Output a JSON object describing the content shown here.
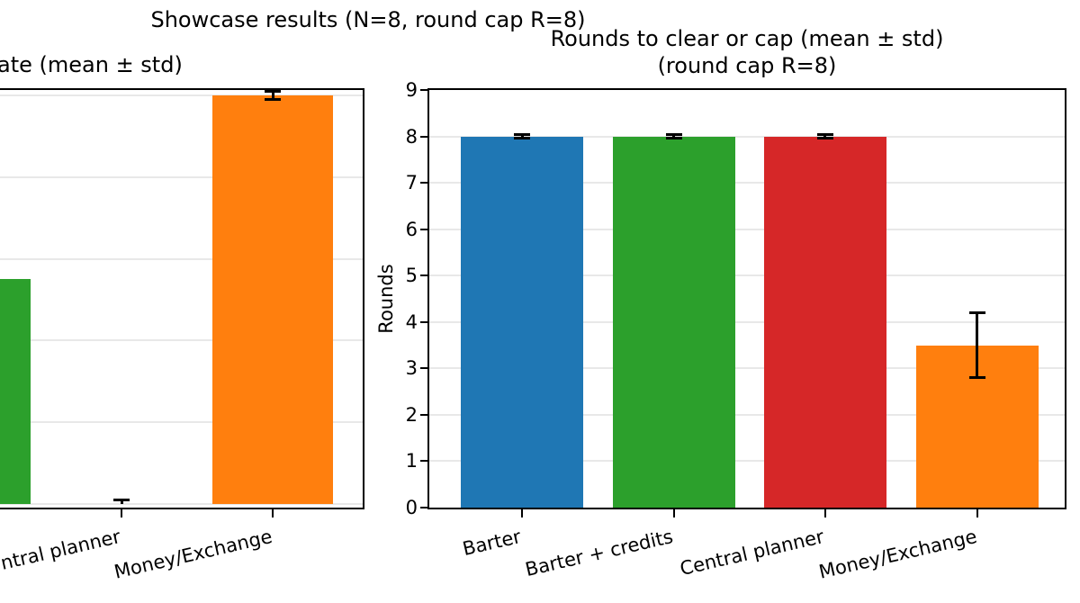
{
  "suptitle": "Showcase results (N=8, round cap R=8)",
  "colors": {
    "background": "#ffffff",
    "spine": "#000000",
    "grid": "#e8e8e8",
    "error_bar": "#000000",
    "text": "#000000"
  },
  "chart_data": [
    {
      "type": "bar",
      "title": "ate (mean ± std)",
      "ylabel": "",
      "ylim": [
        -0.009,
        1.014
      ],
      "gridlines": [
        0,
        0.2,
        0.4,
        0.6,
        0.8,
        1.0
      ],
      "yticks": [],
      "categories": [
        "",
        "ntral planner",
        "Money/Exchange"
      ],
      "series": [
        {
          "name": "mean",
          "values": [
            0.55,
            0.0,
            1.0
          ],
          "std": [
            null,
            0.01,
            0.01
          ]
        }
      ],
      "bar_colors": [
        "#2ca02c",
        "#d62728",
        "#ff7f0e"
      ],
      "layout": {
        "cropped_left_edge": true,
        "grid": "horizontal",
        "center_fracs": [
          -0.082,
          0.335,
          0.752
        ],
        "bar_width_frac": 0.3325,
        "xtick_rotation_deg": -13
      }
    },
    {
      "type": "bar",
      "title_lines": [
        "Rounds to clear or cap (mean ± std)",
        "(round cap R=8)"
      ],
      "ylabel": "Rounds",
      "ylim": [
        0,
        9
      ],
      "gridlines": [
        1,
        2,
        3,
        4,
        5,
        6,
        7,
        8
      ],
      "yticks": [
        0,
        1,
        2,
        3,
        4,
        5,
        6,
        7,
        8,
        9
      ],
      "categories": [
        "Barter",
        "Barter + credits",
        "Central planner",
        "Money/Exchange"
      ],
      "series": [
        {
          "name": "mean",
          "values": [
            8.0,
            8.0,
            8.0,
            3.5
          ],
          "std": [
            0.04,
            0.04,
            0.04,
            0.7
          ]
        }
      ],
      "bar_colors": [
        "#1f77b4",
        "#2ca02c",
        "#d62728",
        "#ff7f0e"
      ],
      "layout": {
        "grid": "horizontal",
        "center_fracs": [
          0.146,
          0.385,
          0.623,
          0.8626
        ],
        "bar_width_frac": 0.1926,
        "xtick_rotation_deg": -13
      }
    }
  ]
}
